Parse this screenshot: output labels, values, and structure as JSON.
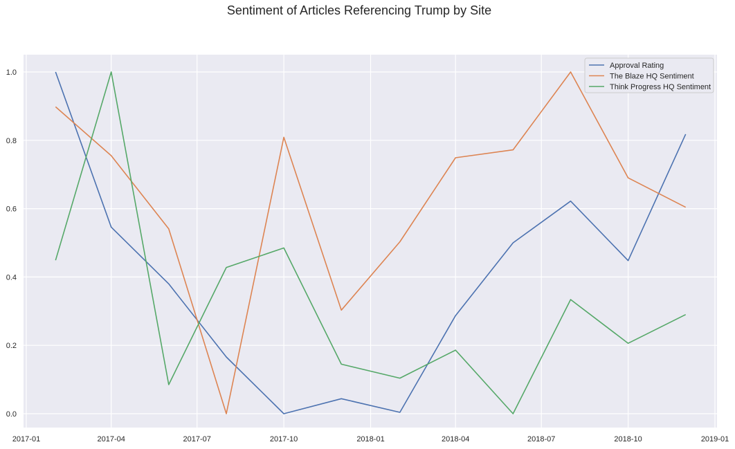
{
  "chart_data": {
    "type": "line",
    "title": "Sentiment of Articles Referencing Trump by Site",
    "xlabel": "",
    "ylabel": "",
    "x": [
      "2017-02-01",
      "2017-04-01",
      "2017-06-01",
      "2017-08-01",
      "2017-10-01",
      "2017-12-01",
      "2018-02-01",
      "2018-04-01",
      "2018-06-01",
      "2018-08-01",
      "2018-10-01",
      "2018-12-01"
    ],
    "x_range": [
      "2017-01-01",
      "2019-01-01"
    ],
    "x_ticks": [
      "2017-01",
      "2017-04",
      "2017-07",
      "2017-10",
      "2018-01",
      "2018-04",
      "2018-07",
      "2018-10",
      "2019-01"
    ],
    "ylim": [
      0,
      1
    ],
    "y_ticks": [
      "0.0",
      "0.2",
      "0.4",
      "0.6",
      "0.8",
      "1.0"
    ],
    "grid": true,
    "legend_position": "top-right",
    "series": [
      {
        "name": "Approval Rating",
        "color": "#4c72b0",
        "values": [
          1.0,
          0.546,
          0.38,
          0.166,
          0.0,
          0.044,
          0.004,
          0.287,
          0.5,
          0.622,
          0.448,
          0.818
        ]
      },
      {
        "name": "The Blaze HQ Sentiment",
        "color": "#dd8452",
        "values": [
          0.898,
          0.755,
          0.541,
          0.0,
          0.809,
          0.303,
          0.503,
          0.749,
          0.772,
          1.0,
          0.69,
          0.604
        ]
      },
      {
        "name": "Think Progress HQ Sentiment",
        "color": "#55a868",
        "values": [
          0.449,
          1.0,
          0.085,
          0.428,
          0.485,
          0.145,
          0.104,
          0.186,
          0.0,
          0.334,
          0.206,
          0.29
        ]
      }
    ]
  },
  "colors": {
    "plot_background": "#eaeaf2",
    "grid": "#ffffff",
    "text": "#262626"
  }
}
